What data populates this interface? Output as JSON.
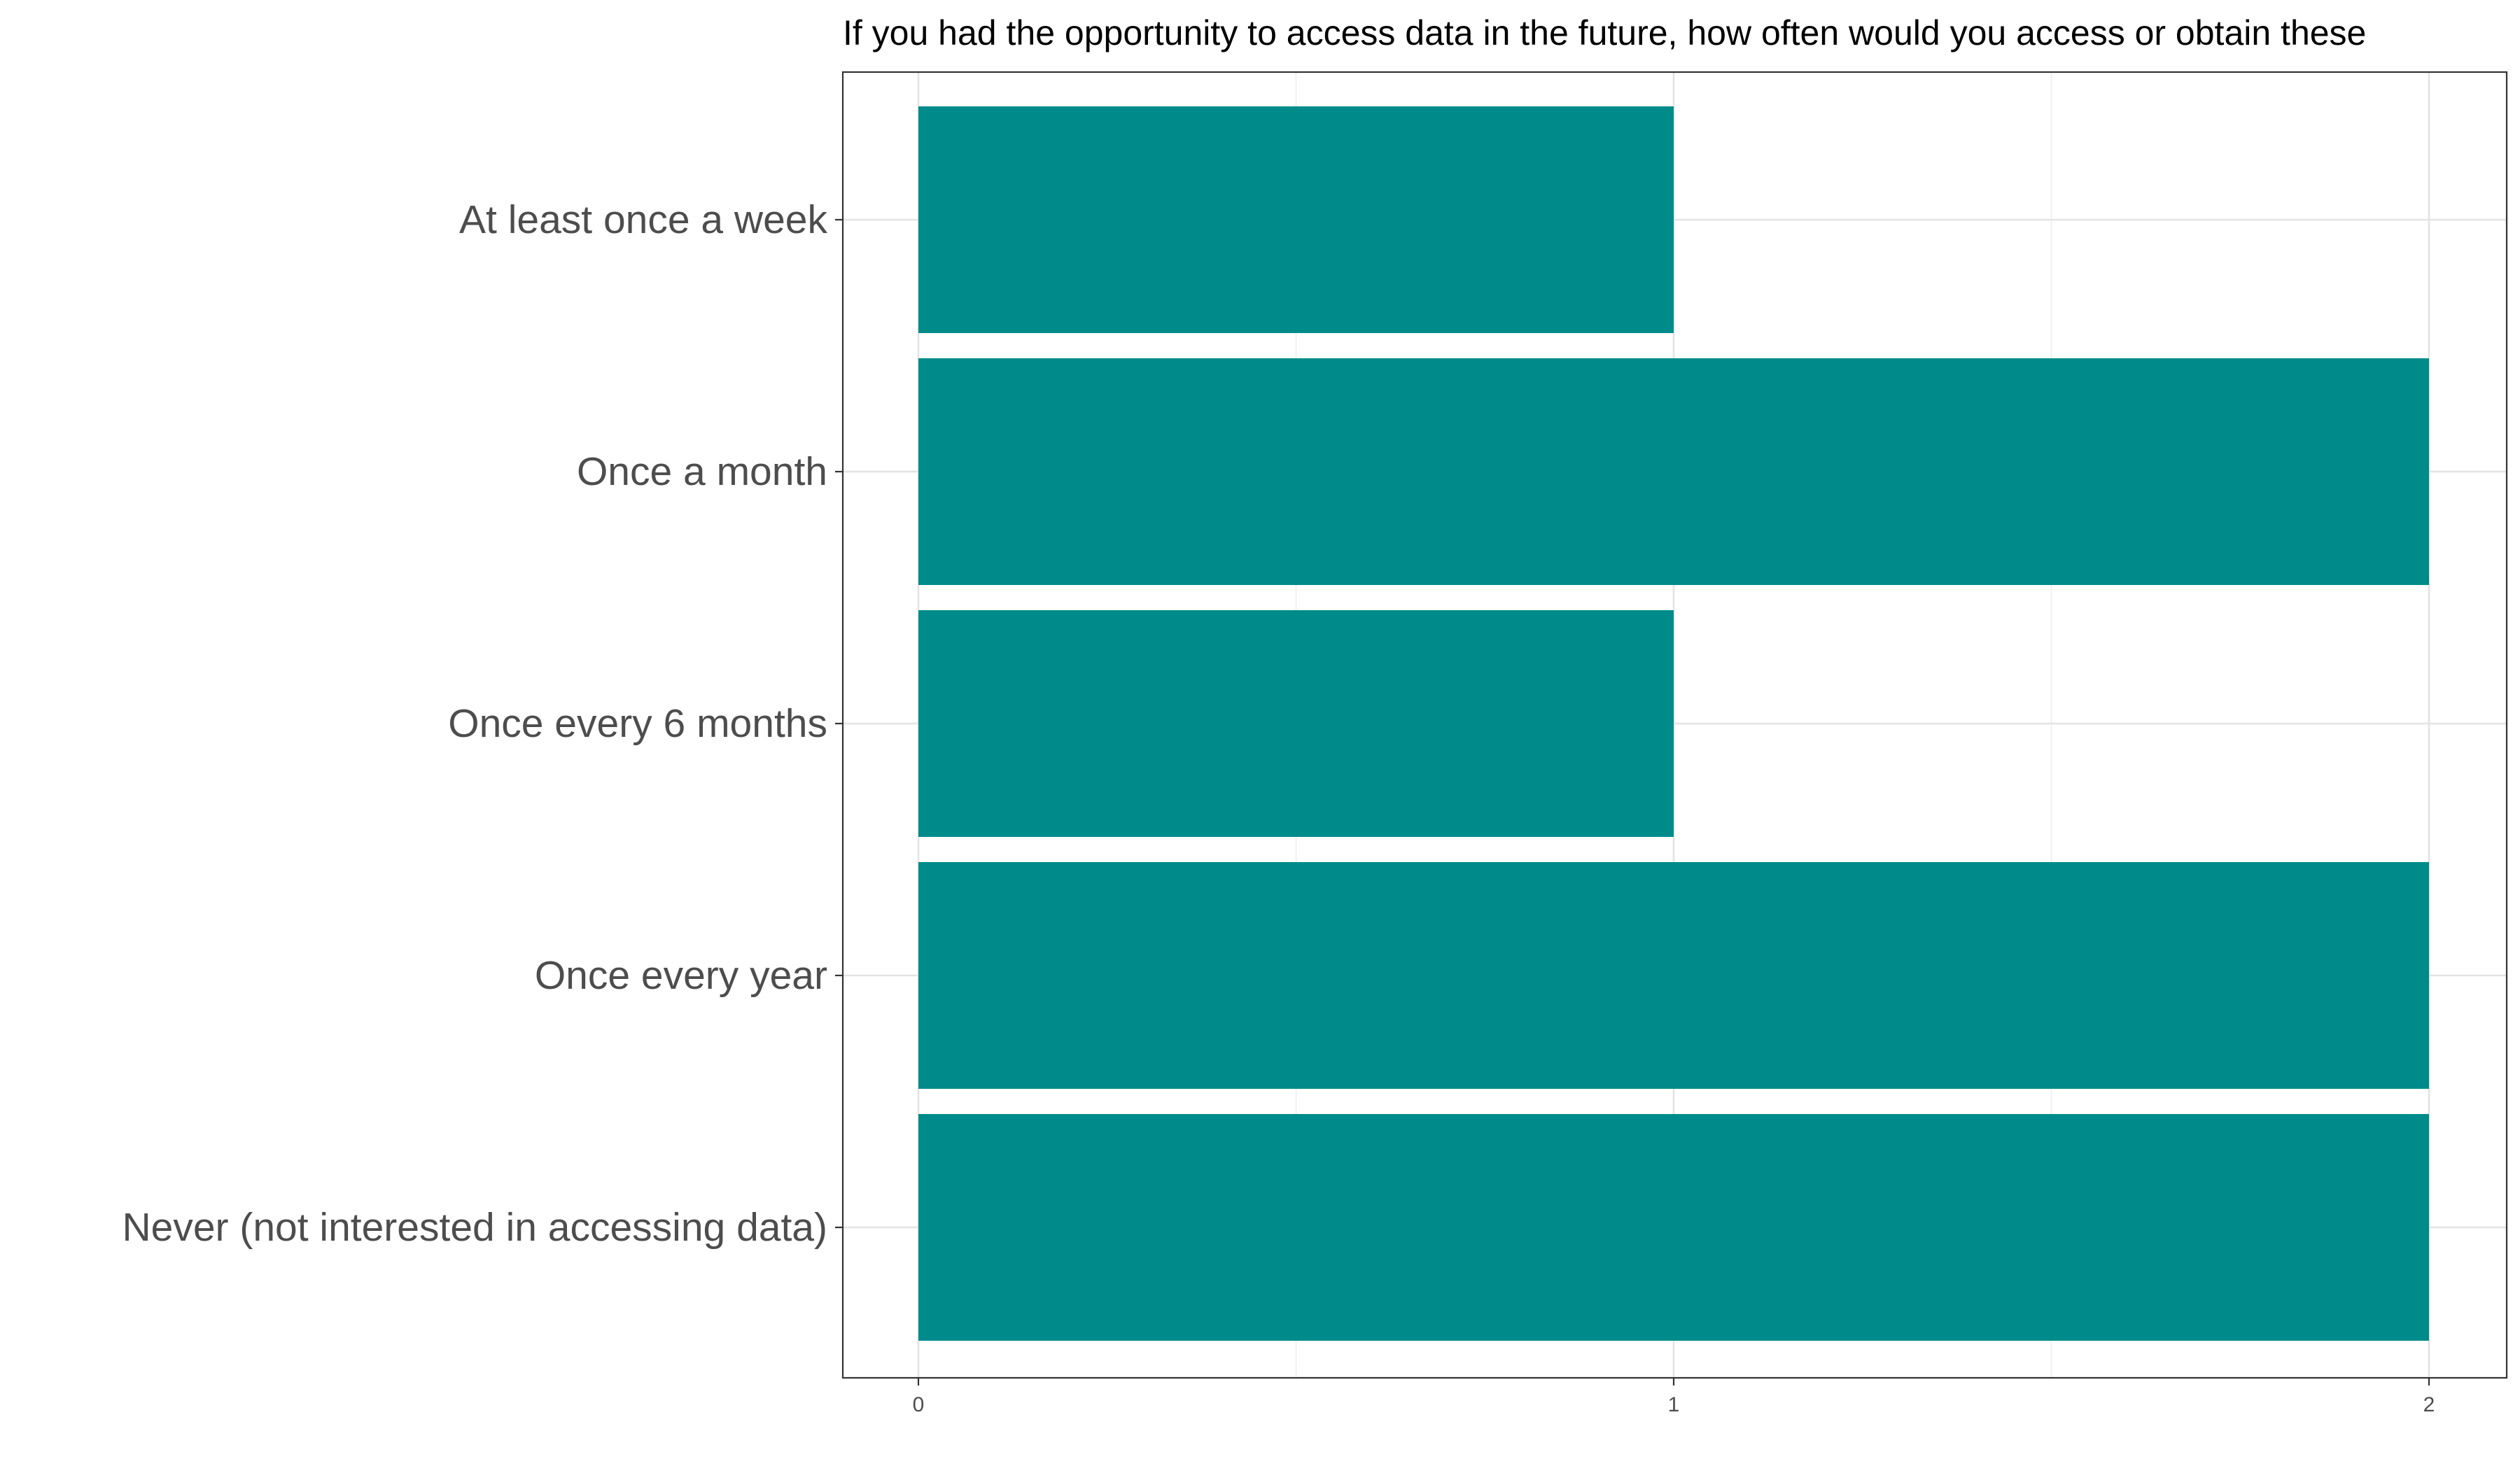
{
  "chart_data": {
    "type": "bar",
    "orientation": "horizontal",
    "title": "If you had the opportunity to access data in the future, how often would you access or obtain these",
    "xlabel": "",
    "ylabel": "",
    "categories": [
      "At least once a week",
      "Once a month",
      "Once every 6 months",
      "Once every year",
      "Never (not interested in accessing data)"
    ],
    "values": [
      1,
      2,
      1,
      2,
      2
    ],
    "xlim": [
      0,
      2
    ],
    "x_ticks": [
      "0",
      "1",
      "2"
    ],
    "grid": true,
    "legend": "none",
    "bar_color": "#008B8B"
  }
}
